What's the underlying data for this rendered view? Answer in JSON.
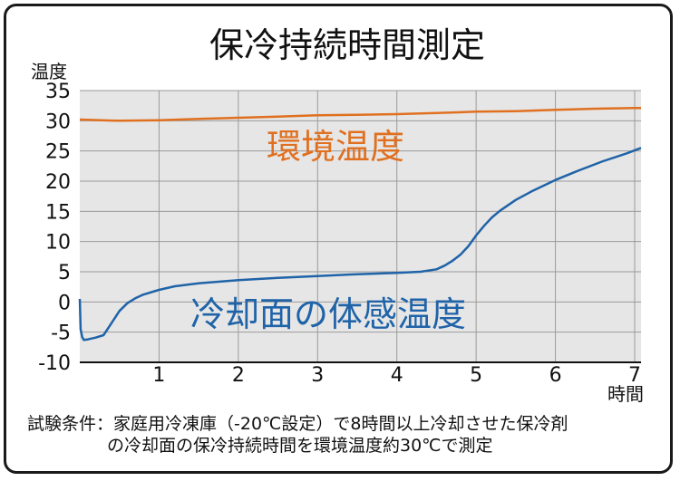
{
  "chart_data": {
    "type": "line",
    "title": "保冷持続時間測定",
    "ylabel": "温度",
    "xlabel": "時間",
    "xlim": [
      0,
      7.08
    ],
    "ylim": [
      -10,
      35
    ],
    "x_ticks": [
      1,
      2,
      3,
      4,
      5,
      6,
      7
    ],
    "y_ticks": [
      -10,
      -5,
      0,
      5,
      10,
      15,
      20,
      25,
      30,
      35
    ],
    "grid": true,
    "colors": {
      "ambient": "#e07020",
      "surface": "#1f63a8",
      "plot_bg": "#e6e6e6",
      "grid": "#9a9a9a"
    },
    "series": [
      {
        "name": "環境温度",
        "color": "#e07020",
        "x": [
          0,
          0.5,
          1.0,
          1.5,
          2.0,
          2.5,
          3.0,
          3.5,
          4.0,
          4.5,
          5.0,
          5.5,
          6.0,
          6.5,
          7.0,
          7.08
        ],
        "y": [
          30.2,
          30.0,
          30.1,
          30.3,
          30.5,
          30.7,
          30.9,
          31.0,
          31.1,
          31.3,
          31.5,
          31.6,
          31.8,
          32.0,
          32.1,
          32.1
        ]
      },
      {
        "name": "冷却面の体感温度",
        "color": "#1f63a8",
        "x": [
          0,
          0.01,
          0.03,
          0.05,
          0.1,
          0.2,
          0.3,
          0.4,
          0.5,
          0.6,
          0.7,
          0.8,
          1.0,
          1.2,
          1.5,
          2.0,
          2.5,
          3.0,
          3.5,
          4.0,
          4.3,
          4.5,
          4.6,
          4.7,
          4.8,
          4.9,
          5.0,
          5.1,
          5.2,
          5.3,
          5.4,
          5.5,
          5.7,
          6.0,
          6.3,
          6.6,
          6.9,
          7.08
        ],
        "y": [
          0.5,
          -4.5,
          -5.8,
          -6.3,
          -6.2,
          -5.9,
          -5.5,
          -3.5,
          -1.5,
          -0.2,
          0.6,
          1.2,
          2.0,
          2.6,
          3.1,
          3.6,
          4.0,
          4.3,
          4.6,
          4.8,
          5.0,
          5.4,
          6.0,
          6.8,
          7.8,
          9.2,
          11.0,
          12.6,
          14.0,
          15.1,
          16.0,
          16.9,
          18.3,
          20.2,
          21.8,
          23.3,
          24.6,
          25.5
        ]
      }
    ],
    "series_labels": [
      "環境温度",
      "冷却面の体感温度"
    ],
    "note": [
      "試験条件：家庭用冷凍庫（-20℃設定）で8時間以上冷却させた保冷剤",
      "の冷却面の保冷持続時間を環境温度約30℃で測定"
    ]
  }
}
